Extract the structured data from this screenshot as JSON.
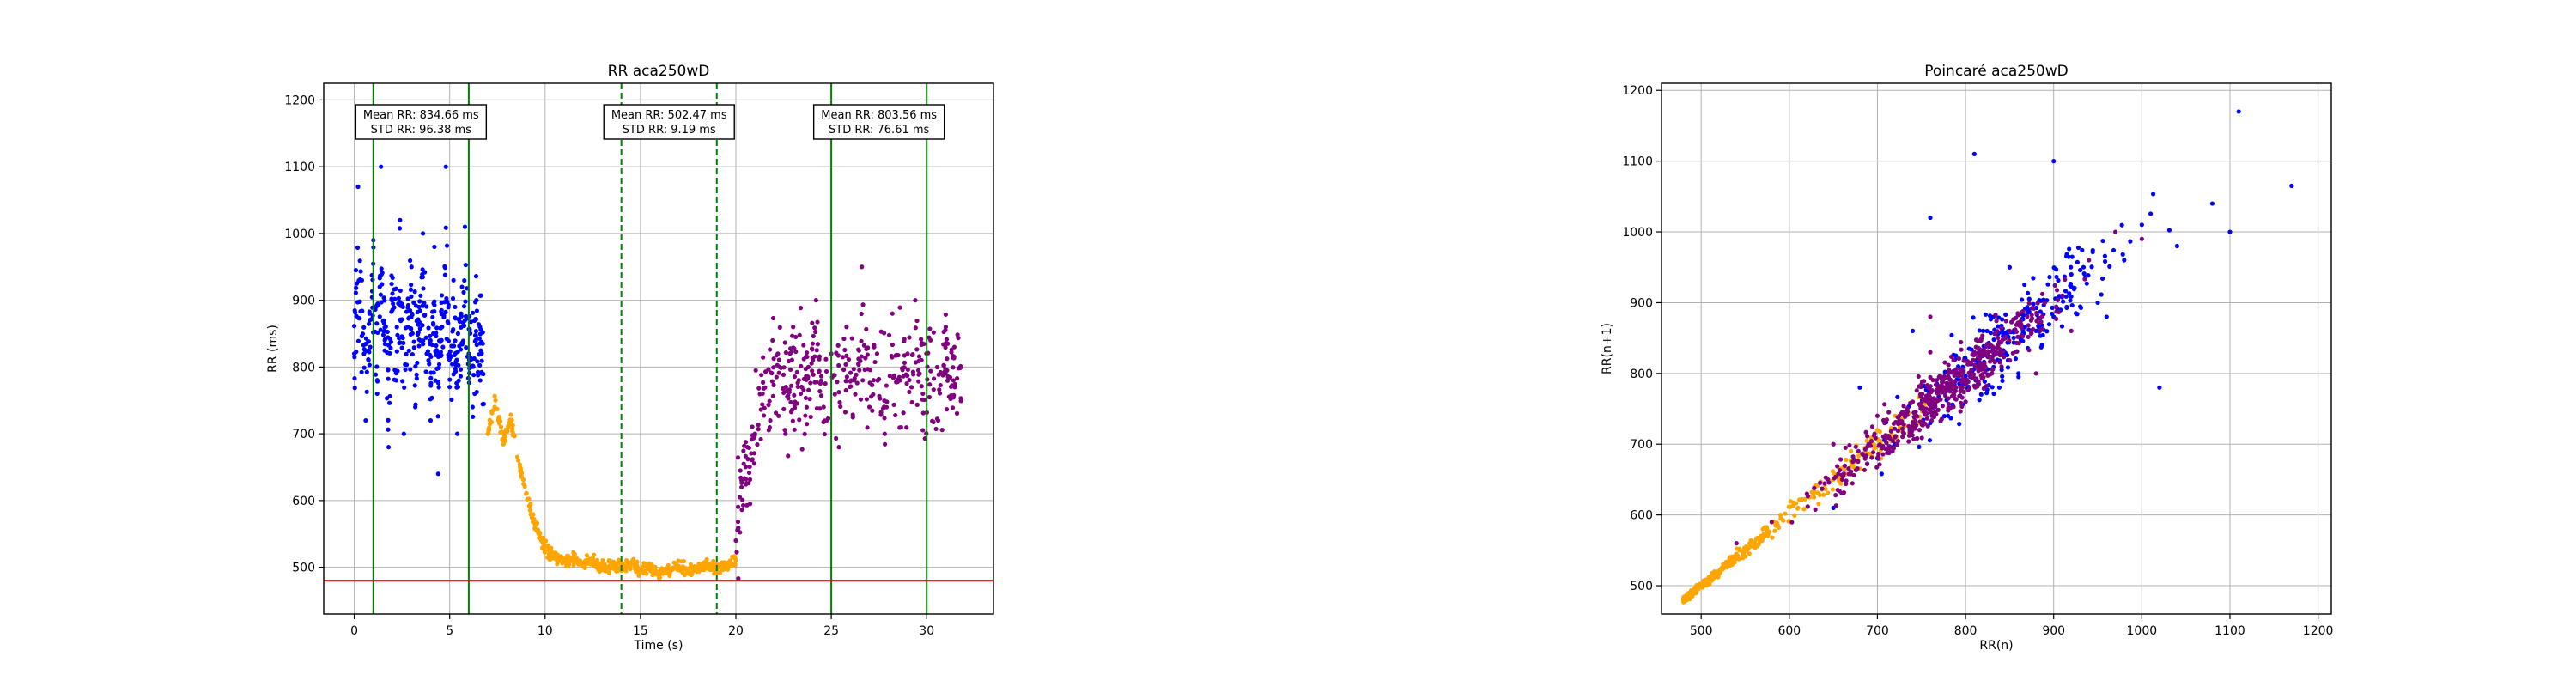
{
  "chart_data": [
    {
      "type": "scatter",
      "title": "RR aca250wD",
      "xlabel": "Time (s)",
      "ylabel": "RR (ms)",
      "xlim": [
        -1.6,
        33.5
      ],
      "ylim": [
        430,
        1225
      ],
      "xticks": [
        0,
        5,
        10,
        15,
        20,
        25,
        30
      ],
      "yticks": [
        500,
        600,
        700,
        800,
        900,
        1000,
        1100,
        1200
      ],
      "grid": true,
      "colors": {
        "rest": "#0000ff",
        "exercise": "#ffa500",
        "recovery": "#800080",
        "threshold": "#ff0000",
        "window_solid": "#008000",
        "window_dashed": "#008000"
      },
      "hline": {
        "y": 480,
        "color": "#ff0000"
      },
      "vlines": [
        {
          "x": 1,
          "style": "solid"
        },
        {
          "x": 6,
          "style": "solid"
        },
        {
          "x": 14,
          "style": "dashed"
        },
        {
          "x": 19,
          "style": "dashed"
        },
        {
          "x": 25,
          "style": "solid"
        },
        {
          "x": 30,
          "style": "solid"
        }
      ],
      "annotations": [
        {
          "x": 3.5,
          "line1": "Mean RR: 834.66 ms",
          "line2": "STD RR: 96.38 ms"
        },
        {
          "x": 16.5,
          "line1": "Mean RR: 502.47 ms",
          "line2": "STD RR: 9.19 ms"
        },
        {
          "x": 27.5,
          "line1": "Mean RR: 803.56 ms",
          "line2": "STD RR: 76.61 ms"
        }
      ],
      "segments": [
        {
          "phase": "rest",
          "t_start": 0,
          "t_end": 6.8,
          "points": [
            [
              0,
              820
            ],
            [
              0.2,
              1070
            ],
            [
              0.4,
              930
            ],
            [
              0.6,
              720
            ],
            [
              0.8,
              880
            ],
            [
              1.0,
              990
            ],
            [
              1.2,
              760
            ],
            [
              1.4,
              1100
            ],
            [
              1.6,
              840
            ],
            [
              1.8,
              680
            ],
            [
              2.0,
              910
            ],
            [
              2.2,
              780
            ],
            [
              2.4,
              1020
            ],
            [
              2.6,
              700
            ],
            [
              2.8,
              860
            ],
            [
              3.0,
              950
            ],
            [
              3.2,
              740
            ],
            [
              3.4,
              890
            ],
            [
              3.6,
              1000
            ],
            [
              3.8,
              820
            ],
            [
              4.0,
              720
            ],
            [
              4.2,
              980
            ],
            [
              4.4,
              640
            ],
            [
              4.6,
              860
            ],
            [
              4.8,
              1100
            ],
            [
              5.0,
              770
            ],
            [
              5.2,
              930
            ],
            [
              5.4,
              700
            ],
            [
              5.6,
              880
            ],
            [
              5.8,
              1010
            ],
            [
              6.0,
              820
            ],
            [
              6.2,
              740
            ],
            [
              6.4,
              900
            ],
            [
              6.6,
              780
            ]
          ]
        },
        {
          "phase": "exercise",
          "t_start": 7,
          "t_end": 20,
          "points": [
            [
              7.0,
              700
            ],
            [
              7.4,
              750
            ],
            [
              7.8,
              690
            ],
            [
              8.2,
              720
            ],
            [
              8.6,
              660
            ],
            [
              9.0,
              610
            ],
            [
              9.4,
              570
            ],
            [
              9.8,
              540
            ],
            [
              10.2,
              520
            ],
            [
              10.6,
              515
            ],
            [
              11.0,
              510
            ],
            [
              11.5,
              512
            ],
            [
              12.0,
              505
            ],
            [
              12.5,
              508
            ],
            [
              13.0,
              500
            ],
            [
              13.5,
              503
            ],
            [
              14.0,
              498
            ],
            [
              14.5,
              505
            ],
            [
              15.0,
              495
            ],
            [
              15.5,
              500
            ],
            [
              16.0,
              490
            ],
            [
              16.5,
              498
            ],
            [
              17.0,
              502
            ],
            [
              17.5,
              495
            ],
            [
              18.0,
              500
            ],
            [
              18.5,
              505
            ],
            [
              19.0,
              498
            ],
            [
              19.5,
              502
            ],
            [
              20.0,
              510
            ]
          ]
        },
        {
          "phase": "recovery",
          "t_start": 20,
          "t_end": 31.8,
          "points": [
            [
              20.0,
              540
            ],
            [
              20.3,
              620
            ],
            [
              20.6,
              680
            ],
            [
              21.0,
              700
            ],
            [
              21.4,
              760
            ],
            [
              21.8,
              720
            ],
            [
              22.2,
              820
            ],
            [
              22.6,
              700
            ],
            [
              23.0,
              860
            ],
            [
              23.4,
              760
            ],
            [
              23.8,
              800
            ],
            [
              24.2,
              900
            ],
            [
              24.6,
              740
            ],
            [
              25.0,
              820
            ],
            [
              25.4,
              680
            ],
            [
              25.8,
              860
            ],
            [
              26.2,
              780
            ],
            [
              26.6,
              950
            ],
            [
              27.0,
              740
            ],
            [
              27.4,
              820
            ],
            [
              27.8,
              700
            ],
            [
              28.2,
              880
            ],
            [
              28.6,
              780
            ],
            [
              29.0,
              820
            ],
            [
              29.4,
              900
            ],
            [
              29.8,
              760
            ],
            [
              30.2,
              840
            ],
            [
              30.6,
              720
            ],
            [
              31.0,
              860
            ],
            [
              31.4,
              780
            ],
            [
              31.8,
              800
            ]
          ]
        }
      ]
    },
    {
      "type": "scatter",
      "title": "Poincaré aca250wD",
      "xlabel": "RR(n)",
      "ylabel": "RR(n+1)",
      "xlim": [
        455,
        1215
      ],
      "ylim": [
        460,
        1210
      ],
      "xticks": [
        500,
        600,
        700,
        800,
        900,
        1000,
        1100,
        1200
      ],
      "yticks": [
        500,
        600,
        700,
        800,
        900,
        1000,
        1100,
        1200
      ],
      "grid": true,
      "colors": {
        "rest": "#0000ff",
        "exercise": "#ffa500",
        "recovery": "#800080"
      },
      "series": [
        {
          "phase": "rest",
          "points": [
            [
              650,
              610
            ],
            [
              720,
              700
            ],
            [
              760,
              730
            ],
            [
              800,
              760
            ],
            [
              830,
              820
            ],
            [
              860,
              800
            ],
            [
              880,
              860
            ],
            [
              900,
              880
            ],
            [
              920,
              940
            ],
            [
              950,
              900
            ],
            [
              980,
              960
            ],
            [
              1000,
              1010
            ],
            [
              1040,
              980
            ],
            [
              1080,
              1040
            ],
            [
              1110,
              1170
            ],
            [
              1170,
              1065
            ],
            [
              1100,
              1000
            ],
            [
              1020,
              780
            ],
            [
              960,
              880
            ],
            [
              900,
              1100
            ],
            [
              850,
              950
            ],
            [
              820,
              860
            ],
            [
              780,
              740
            ],
            [
              740,
              860
            ],
            [
              700,
              680
            ],
            [
              680,
              780
            ],
            [
              810,
              1110
            ],
            [
              760,
              1020
            ]
          ]
        },
        {
          "phase": "exercise",
          "points": [
            [
              485,
              485
            ],
            [
              495,
              500
            ],
            [
              505,
              505
            ],
            [
              515,
              520
            ],
            [
              525,
              530
            ],
            [
              540,
              545
            ],
            [
              555,
              560
            ],
            [
              570,
              580
            ],
            [
              590,
              600
            ],
            [
              610,
              610
            ],
            [
              630,
              640
            ],
            [
              650,
              650
            ],
            [
              670,
              690
            ],
            [
              690,
              700
            ],
            [
              700,
              720
            ],
            [
              720,
              740
            ],
            [
              740,
              760
            ],
            [
              760,
              760
            ]
          ]
        },
        {
          "phase": "recovery",
          "points": [
            [
              540,
              560
            ],
            [
              580,
              590
            ],
            [
              620,
              630
            ],
            [
              660,
              650
            ],
            [
              690,
              700
            ],
            [
              720,
              710
            ],
            [
              740,
              760
            ],
            [
              770,
              780
            ],
            [
              790,
              800
            ],
            [
              810,
              830
            ],
            [
              830,
              800
            ],
            [
              850,
              860
            ],
            [
              870,
              880
            ],
            [
              890,
              900
            ],
            [
              910,
              910
            ],
            [
              940,
              960
            ],
            [
              970,
              1000
            ],
            [
              1000,
              990
            ],
            [
              760,
              830
            ],
            [
              800,
              760
            ],
            [
              700,
              740
            ],
            [
              650,
              700
            ],
            [
              760,
              880
            ],
            [
              880,
              800
            ],
            [
              920,
              860
            ]
          ]
        }
      ]
    }
  ]
}
